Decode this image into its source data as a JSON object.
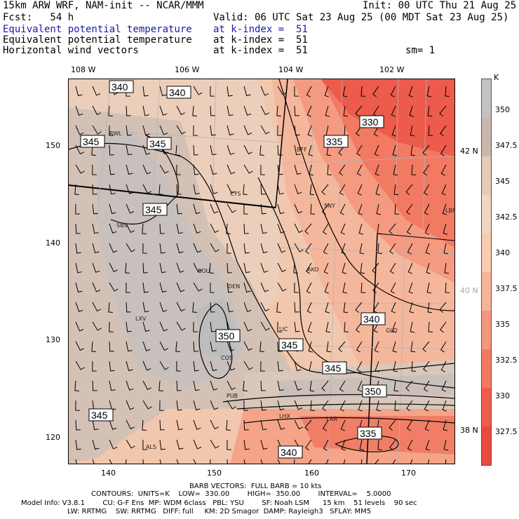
{
  "header": {
    "model_line": "15km ARW WRF, NAM-init -- NCAR/MMM",
    "init_line": "Init: 00 UTC Thu 21 Aug 25",
    "fcst_line": "Fcst:   54 h",
    "valid_line": "Valid: 06 UTC Sat 23 Aug 25 (00 MDT Sat 23 Aug 25)",
    "field1_name": "Equivalent potential temperature",
    "field1_level": "at k-index =  51",
    "field2_name": "Equivalent potential temperature",
    "field2_level": "at k-index =  51",
    "field3_name": "Horizontal wind vectors",
    "field3_level": "at k-index =  51",
    "smoothing": "sm= 1"
  },
  "top_lon_labels": [
    "108 W",
    "106 W",
    "104 W",
    "102 W"
  ],
  "left_y_ticks": [
    "150",
    "140",
    "130",
    "120"
  ],
  "bottom_x_ticks": [
    "140",
    "150",
    "160",
    "170"
  ],
  "right_lat_labels": [
    "42 N",
    "40 N",
    "38 N"
  ],
  "stations": [
    "RWL",
    "BFF",
    "CYS",
    "SNY",
    "SBS",
    "LBF",
    "AKO",
    "BOU",
    "DEN",
    "LXV",
    "LIC",
    "GLD",
    "COS",
    "PUB",
    "LHX",
    "LAA",
    "ALS"
  ],
  "contour_labels": [
    "340",
    "340",
    "330",
    "345",
    "345",
    "335",
    "345",
    "350",
    "340",
    "345",
    "345",
    "350",
    "345",
    "335",
    "340"
  ],
  "colorbar": {
    "unit": "K",
    "labels": [
      "350",
      "347.5",
      "345",
      "342.5",
      "340",
      "337.5",
      "335",
      "332.5",
      "330",
      "327.5"
    ],
    "colors": [
      "#c2c2c2",
      "#cab7ad",
      "#e3cbb8",
      "#f2d6c0",
      "#f7ccb0",
      "#f6b498",
      "#f5977c",
      "#f27a63",
      "#ee5c4c",
      "#e84a3e"
    ]
  },
  "footer": {
    "barb_line": "BARB VECTORS:  FULL BARB = 10 kts",
    "contour_line": "CONTOURS:  UNITS=K    LOW=  330.00        HIGH=  350.00        INTERVAL=    5.0000",
    "model_info_line": "Model Info: V3.8.1        CU: G-F Ens  MP: WDM 6class   PBL: YSU        SF: Noah LSM      15 km    51 levels    90 sec",
    "lw_line": "LW: RRTMG    SW: RRTMG   DIFF: full     KM: 2D Smagor  DAMP: Rayleigh3   SFLAY: MM5"
  }
}
